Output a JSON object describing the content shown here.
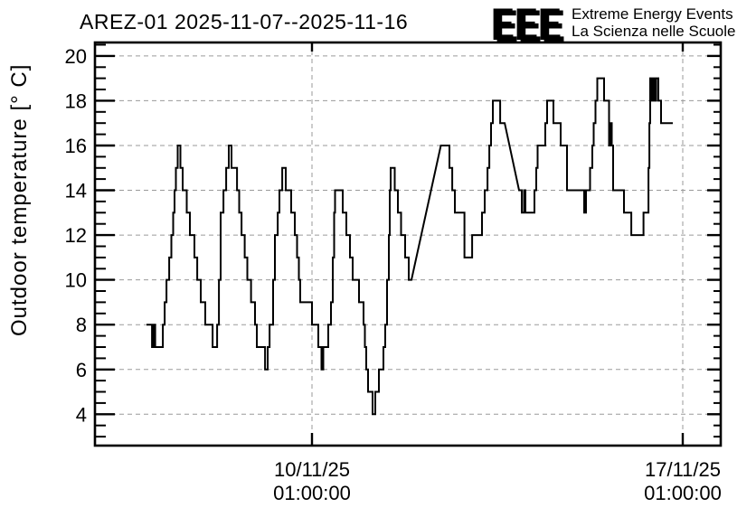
{
  "logo": {
    "eee": "EEE",
    "line1": "Extreme Energy Events",
    "line2": "La Scienza nelle Scuole",
    "blue": "#1c1cd0",
    "shadow": "#b4b4b4"
  },
  "chart_data": {
    "type": "line",
    "title": "AREZ-01 2025-11-07--2025-11-16",
    "ylabel": "Outdoor temperature [° C]",
    "series_name": "Outdoor temperature",
    "ylim": [
      2.6,
      20.6
    ],
    "y_ticks": [
      4,
      6,
      8,
      10,
      12,
      14,
      16,
      18,
      20
    ],
    "y_minor_step": 0.5,
    "grid": "dashed",
    "grid_color": "#9a9a9a",
    "line_color": "#000000",
    "x_ticks": [
      {
        "label_line1": "10/11/25",
        "label_line2": "01:00:00",
        "datetime": "10/11 01:00"
      },
      {
        "label_line1": "17/11/25",
        "label_line2": "01:00:00",
        "datetime": "17/11 01:00"
      }
    ],
    "segments": [
      [
        "06/11 22:00",
        "07/11 00:30",
        8
      ],
      [
        "07/11 00:30",
        "07/11 01:20",
        7
      ],
      [
        "07/11 01:20",
        "07/11 01:56",
        8
      ],
      [
        "07/11 01:56",
        "07/11 05:25",
        7
      ],
      [
        "07/11 05:25",
        "07/11 06:14",
        8
      ],
      [
        "07/11 06:14",
        "07/11 07:03",
        9
      ],
      [
        "07/11 07:03",
        "07/11 08:17",
        10
      ],
      [
        "07/11 08:17",
        "07/11 09:18",
        11
      ],
      [
        "07/11 09:18",
        "07/11 10:07",
        12
      ],
      [
        "07/11 10:07",
        "07/11 10:44",
        13
      ],
      [
        "07/11 10:44",
        "07/11 11:21",
        14
      ],
      [
        "07/11 11:21",
        "07/11 12:10",
        15
      ],
      [
        "07/11 12:10",
        "07/11 13:24",
        16
      ],
      [
        "07/11 13:24",
        "07/11 14:25",
        15
      ],
      [
        "07/11 14:25",
        "07/11 16:16",
        14
      ],
      [
        "07/11 16:16",
        "07/11 17:42",
        13
      ],
      [
        "07/11 17:42",
        "07/11 19:45",
        12
      ],
      [
        "07/11 19:45",
        "07/11 20:59",
        11
      ],
      [
        "07/11 20:59",
        "07/11 22:37",
        10
      ],
      [
        "07/11 22:37",
        "08/11 00:40",
        9
      ],
      [
        "08/11 00:40",
        "08/11 03:57",
        8
      ],
      [
        "08/11 03:57",
        "08/11 06:00",
        7
      ],
      [
        "08/11 06:00",
        "08/11 06:49",
        8
      ],
      [
        "08/11 06:49",
        "08/11 07:38",
        10
      ],
      [
        "08/11 07:38",
        "08/11 08:52",
        13
      ],
      [
        "08/11 08:52",
        "08/11 10:06",
        14
      ],
      [
        "08/11 10:06",
        "08/11 11:19",
        15
      ],
      [
        "08/11 11:19",
        "08/11 12:33",
        16
      ],
      [
        "08/11 12:33",
        "08/11 15:01",
        15
      ],
      [
        "08/11 15:01",
        "08/11 16:02",
        14
      ],
      [
        "08/11 16:02",
        "08/11 17:04",
        13
      ],
      [
        "08/11 17:04",
        "08/11 18:30",
        12
      ],
      [
        "08/11 18:30",
        "08/11 19:43",
        11
      ],
      [
        "08/11 19:43",
        "08/11 21:22",
        10
      ],
      [
        "08/11 21:22",
        "08/11 23:12",
        9
      ],
      [
        "08/11 23:12",
        "09/11 00:01",
        8
      ],
      [
        "09/11 00:01",
        "09/11 03:43",
        7
      ],
      [
        "09/11 03:43",
        "09/11 04:56",
        6
      ],
      [
        "09/11 04:56",
        "09/11 05:46",
        7
      ],
      [
        "09/11 05:46",
        "09/11 07:24",
        8
      ],
      [
        "09/11 07:24",
        "09/11 08:13",
        10
      ],
      [
        "09/11 08:13",
        "09/11 09:27",
        12
      ],
      [
        "09/11 09:27",
        "09/11 10:16",
        13
      ],
      [
        "09/11 10:16",
        "09/11 11:30",
        14
      ],
      [
        "09/11 11:30",
        "09/11 13:08",
        15
      ],
      [
        "09/11 13:08",
        "09/11 15:35",
        14
      ],
      [
        "09/11 15:35",
        "09/11 17:14",
        13
      ],
      [
        "09/11 17:14",
        "09/11 18:15",
        12
      ],
      [
        "09/11 18:15",
        "09/11 19:04",
        11
      ],
      [
        "09/11 19:04",
        "09/11 19:41",
        10
      ],
      [
        "09/11 19:41",
        "10/11 01:00",
        9
      ],
      [
        "10/11 01:00",
        "10/11 03:52",
        8
      ],
      [
        "10/11 03:52",
        "10/11 05:18",
        7
      ],
      [
        "10/11 05:18",
        "10/11 06:07",
        6
      ],
      [
        "10/11 06:07",
        "10/11 08:23",
        7
      ],
      [
        "10/11 08:23",
        "10/11 09:36",
        8
      ],
      [
        "10/11 09:36",
        "10/11 10:25",
        9
      ],
      [
        "10/11 10:25",
        "10/11 11:02",
        11
      ],
      [
        "10/11 11:02",
        "10/11 11:27",
        13
      ],
      [
        "10/11 11:27",
        "10/11 14:56",
        14
      ],
      [
        "10/11 14:56",
        "10/11 16:34",
        13
      ],
      [
        "10/11 16:34",
        "10/11 18:13",
        12
      ],
      [
        "10/11 18:13",
        "10/11 19:26",
        11
      ],
      [
        "10/11 19:26",
        "10/11 22:18",
        10
      ],
      [
        "10/11 22:18",
        "11/11 00:21",
        9
      ],
      [
        "11/11 00:21",
        "11/11 00:58",
        8
      ],
      [
        "11/11 00:58",
        "11/11 01:35",
        7
      ],
      [
        "11/11 01:35",
        "11/11 02:24",
        6
      ],
      [
        "11/11 02:24",
        "11/11 04:27",
        5
      ],
      [
        "11/11 04:27",
        "11/11 05:41",
        4
      ],
      [
        "11/11 05:41",
        "11/11 07:19",
        5
      ],
      [
        "11/11 07:19",
        "11/11 09:22",
        6
      ],
      [
        "11/11 09:22",
        "11/11 10:11",
        7
      ],
      [
        "11/11 10:11",
        "11/11 11:00",
        8
      ],
      [
        "11/11 11:00",
        "11/11 11:49",
        10
      ],
      [
        "11/11 11:49",
        "11/11 12:14",
        12
      ],
      [
        "11/11 12:14",
        "11/11 12:39",
        14
      ],
      [
        "11/11 12:39",
        "11/11 14:29",
        15
      ],
      [
        "11/11 14:29",
        "11/11 15:55",
        14
      ],
      [
        "11/11 15:55",
        "11/11 17:22",
        13
      ],
      [
        "11/11 17:22",
        "11/11 19:12",
        12
      ],
      [
        "11/11 19:12",
        "11/11 20:51",
        11
      ],
      [
        "11/11 20:51",
        "11/11 22:04",
        10
      ],
      [
        "12/11 11:24",
        "12/11 15:18",
        16
      ],
      [
        "12/11 15:18",
        "12/11 16:32",
        15
      ],
      [
        "12/11 16:32",
        "12/11 17:45",
        14
      ],
      [
        "12/11 17:45",
        "12/11 22:04",
        13
      ],
      [
        "12/11 22:04",
        "13/11 01:33",
        11
      ],
      [
        "13/11 01:33",
        "13/11 06:03",
        12
      ],
      [
        "13/11 06:03",
        "13/11 07:17",
        13
      ],
      [
        "13/11 07:17",
        "13/11 08:31",
        14
      ],
      [
        "13/11 08:31",
        "13/11 09:20",
        15
      ],
      [
        "13/11 09:20",
        "13/11 10:09",
        16
      ],
      [
        "13/11 10:09",
        "13/11 10:58",
        17
      ],
      [
        "13/11 10:58",
        "13/11 14:15",
        18
      ],
      [
        "13/11 14:15",
        "13/11 16:18",
        17
      ],
      [
        "13/11 22:51",
        "14/11 00:04",
        14
      ],
      [
        "14/11 00:04",
        "14/11 01:06",
        13
      ],
      [
        "14/11 01:06",
        "14/11 01:43",
        14
      ],
      [
        "14/11 01:43",
        "14/11 05:49",
        13
      ],
      [
        "14/11 05:49",
        "14/11 06:38",
        14
      ],
      [
        "14/11 06:38",
        "14/11 07:15",
        15
      ],
      [
        "14/11 07:15",
        "14/11 10:44",
        16
      ],
      [
        "14/11 10:44",
        "14/11 11:33",
        17
      ],
      [
        "14/11 11:33",
        "14/11 14:25",
        18
      ],
      [
        "14/11 14:25",
        "14/11 17:42",
        17
      ],
      [
        "14/11 17:42",
        "14/11 20:34",
        16
      ],
      [
        "14/11 20:34",
        "15/11 04:21",
        14
      ],
      [
        "15/11 04:21",
        "15/11 05:10",
        13
      ],
      [
        "15/11 05:10",
        "15/11 07:01",
        14
      ],
      [
        "15/11 07:01",
        "15/11 08:02",
        15
      ],
      [
        "15/11 08:02",
        "15/11 08:39",
        16
      ],
      [
        "15/11 08:39",
        "15/11 09:28",
        17
      ],
      [
        "15/11 09:28",
        "15/11 10:17",
        18
      ],
      [
        "15/11 10:17",
        "15/11 13:22",
        19
      ],
      [
        "15/11 13:22",
        "15/11 15:37",
        18
      ],
      [
        "15/11 15:37",
        "15/11 16:02",
        16
      ],
      [
        "15/11 16:02",
        "15/11 16:51",
        17
      ],
      [
        "15/11 16:51",
        "15/11 17:28",
        16
      ],
      [
        "15/11 17:28",
        "15/11 22:23",
        14
      ],
      [
        "15/11 22:23",
        "16/11 01:40",
        13
      ],
      [
        "16/11 01:40",
        "16/11 07:12",
        12
      ],
      [
        "16/11 07:12",
        "16/11 09:27",
        13
      ],
      [
        "16/11 09:27",
        "16/11 09:52",
        15
      ],
      [
        "16/11 09:52",
        "16/11 10:16",
        17
      ],
      [
        "16/11 10:16",
        "16/11 11:05",
        19
      ],
      [
        "16/11 11:05",
        "16/11 11:30",
        18
      ],
      [
        "16/11 11:30",
        "16/11 12:19",
        19
      ],
      [
        "16/11 12:19",
        "16/11 12:56",
        18
      ],
      [
        "16/11 12:56",
        "16/11 13:57",
        19
      ],
      [
        "16/11 13:57",
        "16/11 15:11",
        18
      ],
      [
        "16/11 15:11",
        "16/11 20:30",
        17
      ]
    ]
  }
}
